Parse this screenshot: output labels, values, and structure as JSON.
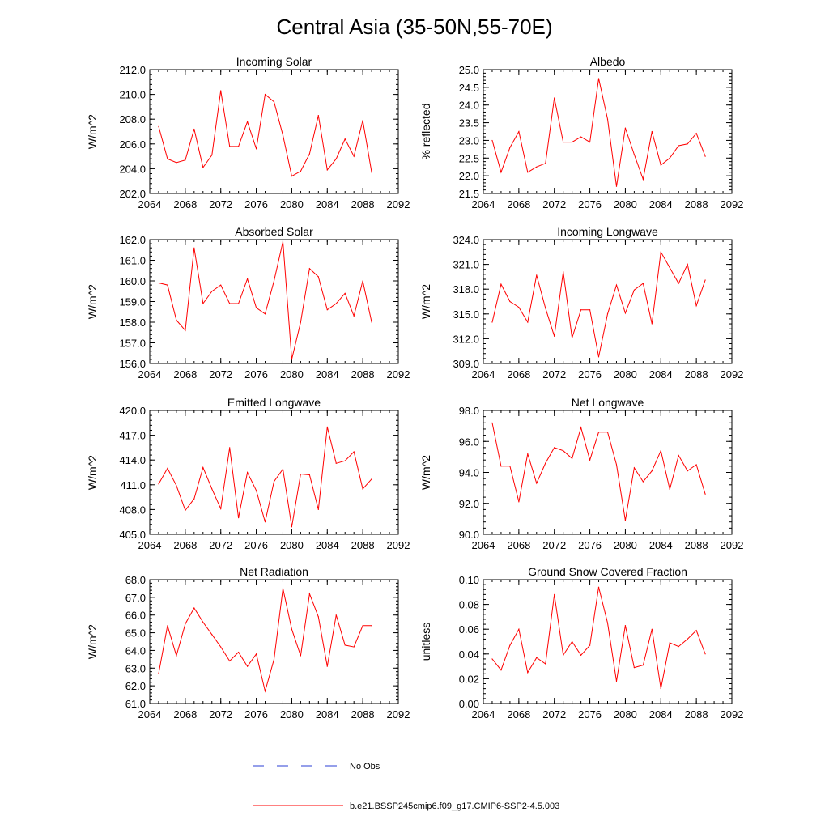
{
  "page": {
    "title": "Central Asia (35-50N,55-70E)"
  },
  "legend": {
    "obs_label": "No Obs",
    "model_label": "b.e21.BSSP245cmip6.f09_g17.CMIP6-SSP2-4.5.003"
  },
  "colors": {
    "model_line": "#ff0000",
    "obs_line": "#2b3fd6",
    "axes": "#000000"
  },
  "chart_data": [
    {
      "type": "line",
      "title": "Incoming Solar",
      "ylabel": "W/m^2",
      "xlabel": "",
      "xlim": [
        2064,
        2092
      ],
      "ylim": [
        202.0,
        212.0
      ],
      "xticks": [
        "2064",
        "2068",
        "2072",
        "2076",
        "2080",
        "2084",
        "2088",
        "2092"
      ],
      "yticks": [
        "202.0",
        "204.0",
        "206.0",
        "208.0",
        "210.0",
        "212.0"
      ],
      "x": [
        2065,
        2066,
        2067,
        2068,
        2069,
        2070,
        2071,
        2072,
        2073,
        2074,
        2075,
        2076,
        2077,
        2078,
        2079,
        2080,
        2081,
        2082,
        2083,
        2084,
        2085,
        2086,
        2087,
        2088,
        2089
      ],
      "values": [
        207.4,
        204.8,
        204.5,
        204.7,
        207.2,
        204.1,
        205.1,
        210.3,
        205.8,
        205.8,
        207.8,
        205.6,
        210.0,
        209.4,
        206.7,
        203.4,
        203.8,
        205.2,
        208.3,
        203.9,
        204.8,
        206.4,
        205.0,
        207.9,
        203.7
      ]
    },
    {
      "type": "line",
      "title": "Albedo",
      "ylabel": "% reflected",
      "xlabel": "",
      "xlim": [
        2064,
        2092
      ],
      "ylim": [
        21.5,
        25.0
      ],
      "xticks": [
        "2064",
        "2068",
        "2072",
        "2076",
        "2080",
        "2084",
        "2088",
        "2092"
      ],
      "yticks": [
        "21.5",
        "22.0",
        "22.5",
        "23.0",
        "23.5",
        "24.0",
        "24.5",
        "25.0"
      ],
      "x": [
        2065,
        2066,
        2067,
        2068,
        2069,
        2070,
        2071,
        2072,
        2073,
        2074,
        2075,
        2076,
        2077,
        2078,
        2079,
        2080,
        2081,
        2082,
        2083,
        2084,
        2085,
        2086,
        2087,
        2088,
        2089
      ],
      "values": [
        23.0,
        22.1,
        22.8,
        23.25,
        22.1,
        22.25,
        22.35,
        24.2,
        22.95,
        22.95,
        23.1,
        22.95,
        24.75,
        23.6,
        21.7,
        23.35,
        22.6,
        21.9,
        23.25,
        22.3,
        22.5,
        22.85,
        22.9,
        23.2,
        22.55
      ]
    },
    {
      "type": "line",
      "title": "Absorbed Solar",
      "ylabel": "W/m^2",
      "xlabel": "",
      "xlim": [
        2064,
        2092
      ],
      "ylim": [
        156.0,
        162.0
      ],
      "xticks": [
        "2064",
        "2068",
        "2072",
        "2076",
        "2080",
        "2084",
        "2088",
        "2092"
      ],
      "yticks": [
        "156.0",
        "157.0",
        "158.0",
        "159.0",
        "160.0",
        "161.0",
        "162.0"
      ],
      "x": [
        2065,
        2066,
        2067,
        2068,
        2069,
        2070,
        2071,
        2072,
        2073,
        2074,
        2075,
        2076,
        2077,
        2078,
        2079,
        2080,
        2081,
        2082,
        2083,
        2084,
        2085,
        2086,
        2087,
        2088,
        2089
      ],
      "values": [
        159.9,
        159.8,
        158.1,
        157.6,
        161.6,
        158.9,
        159.5,
        159.8,
        158.9,
        158.9,
        160.1,
        158.7,
        158.4,
        160.0,
        161.9,
        156.2,
        158.0,
        160.6,
        160.2,
        158.6,
        158.9,
        159.4,
        158.3,
        160.0,
        158.0
      ]
    },
    {
      "type": "line",
      "title": "Incoming Longwave",
      "ylabel": "W/m^2",
      "xlabel": "",
      "xlim": [
        2064,
        2092
      ],
      "ylim": [
        309.0,
        324.0
      ],
      "xticks": [
        "2064",
        "2068",
        "2072",
        "2076",
        "2080",
        "2084",
        "2088",
        "2092"
      ],
      "yticks": [
        "309.0",
        "312.0",
        "315.0",
        "318.0",
        "321.0",
        "324.0"
      ],
      "x": [
        2065,
        2066,
        2067,
        2068,
        2069,
        2070,
        2071,
        2072,
        2073,
        2074,
        2075,
        2076,
        2077,
        2078,
        2079,
        2080,
        2081,
        2082,
        2083,
        2084,
        2085,
        2086,
        2087,
        2088,
        2089
      ],
      "values": [
        314.0,
        318.6,
        316.5,
        315.8,
        314.0,
        319.7,
        315.7,
        312.3,
        320.1,
        312.1,
        315.5,
        315.5,
        309.8,
        315.0,
        318.5,
        315.1,
        317.9,
        318.7,
        313.8,
        322.5,
        320.6,
        318.7,
        321.0,
        316.0,
        319.1
      ]
    },
    {
      "type": "line",
      "title": "Emitted Longwave",
      "ylabel": "W/m^2",
      "xlabel": "",
      "xlim": [
        2064,
        2092
      ],
      "ylim": [
        405.0,
        420.0
      ],
      "xticks": [
        "2064",
        "2068",
        "2072",
        "2076",
        "2080",
        "2084",
        "2088",
        "2092"
      ],
      "yticks": [
        "405.0",
        "408.0",
        "411.0",
        "414.0",
        "417.0",
        "420.0"
      ],
      "x": [
        2065,
        2066,
        2067,
        2068,
        2069,
        2070,
        2071,
        2072,
        2073,
        2074,
        2075,
        2076,
        2077,
        2078,
        2079,
        2080,
        2081,
        2082,
        2083,
        2084,
        2085,
        2086,
        2087,
        2088,
        2089
      ],
      "values": [
        411.1,
        413.0,
        410.9,
        407.9,
        409.3,
        413.1,
        410.5,
        408.1,
        415.5,
        407.0,
        412.5,
        410.3,
        406.5,
        411.4,
        412.9,
        405.9,
        412.3,
        412.2,
        408.0,
        418.0,
        413.6,
        413.9,
        415.0,
        410.5,
        411.7
      ]
    },
    {
      "type": "line",
      "title": "Net Longwave",
      "ylabel": "W/m^2",
      "xlabel": "",
      "xlim": [
        2064,
        2092
      ],
      "ylim": [
        90.0,
        98.0
      ],
      "xticks": [
        "2064",
        "2068",
        "2072",
        "2076",
        "2080",
        "2084",
        "2088",
        "2092"
      ],
      "yticks": [
        "90.0",
        "92.0",
        "94.0",
        "96.0",
        "98.0"
      ],
      "x": [
        2065,
        2066,
        2067,
        2068,
        2069,
        2070,
        2071,
        2072,
        2073,
        2074,
        2075,
        2076,
        2077,
        2078,
        2079,
        2080,
        2081,
        2082,
        2083,
        2084,
        2085,
        2086,
        2087,
        2088,
        2089
      ],
      "values": [
        97.2,
        94.4,
        94.4,
        92.1,
        95.2,
        93.3,
        94.6,
        95.6,
        95.4,
        94.9,
        96.9,
        94.8,
        96.6,
        96.6,
        94.5,
        90.9,
        94.3,
        93.4,
        94.1,
        95.4,
        92.9,
        95.1,
        94.1,
        94.5,
        92.6
      ]
    },
    {
      "type": "line",
      "title": "Net Radiation",
      "ylabel": "W/m^2",
      "xlabel": "",
      "xlim": [
        2064,
        2092
      ],
      "ylim": [
        61.0,
        68.0
      ],
      "xticks": [
        "2064",
        "2068",
        "2072",
        "2076",
        "2080",
        "2084",
        "2088",
        "2092"
      ],
      "yticks": [
        "61.0",
        "62.0",
        "63.0",
        "64.0",
        "65.0",
        "66.0",
        "67.0",
        "68.0"
      ],
      "x": [
        2065,
        2066,
        2067,
        2068,
        2069,
        2070,
        2071,
        2072,
        2073,
        2074,
        2075,
        2076,
        2077,
        2078,
        2079,
        2080,
        2081,
        2082,
        2083,
        2084,
        2085,
        2086,
        2087,
        2088,
        2089
      ],
      "values": [
        62.7,
        65.4,
        63.7,
        65.5,
        66.4,
        65.6,
        64.9,
        64.2,
        63.4,
        63.9,
        63.1,
        63.8,
        61.7,
        63.5,
        67.5,
        65.2,
        63.7,
        67.2,
        65.9,
        63.1,
        66.0,
        64.3,
        64.2,
        65.4,
        65.4
      ]
    },
    {
      "type": "line",
      "title": "Ground Snow Covered Fraction",
      "ylabel": "unitless",
      "xlabel": "",
      "xlim": [
        2064,
        2092
      ],
      "ylim": [
        0.0,
        0.1
      ],
      "xticks": [
        "2064",
        "2068",
        "2072",
        "2076",
        "2080",
        "2084",
        "2088",
        "2092"
      ],
      "yticks": [
        "0.00",
        "0.02",
        "0.04",
        "0.06",
        "0.08",
        "0.10"
      ],
      "x": [
        2065,
        2066,
        2067,
        2068,
        2069,
        2070,
        2071,
        2072,
        2073,
        2074,
        2075,
        2076,
        2077,
        2078,
        2079,
        2080,
        2081,
        2082,
        2083,
        2084,
        2085,
        2086,
        2087,
        2088,
        2089
      ],
      "values": [
        0.036,
        0.027,
        0.047,
        0.06,
        0.025,
        0.037,
        0.032,
        0.088,
        0.039,
        0.05,
        0.039,
        0.047,
        0.094,
        0.065,
        0.018,
        0.063,
        0.029,
        0.031,
        0.06,
        0.012,
        0.049,
        0.046,
        0.052,
        0.059,
        0.04
      ]
    }
  ]
}
